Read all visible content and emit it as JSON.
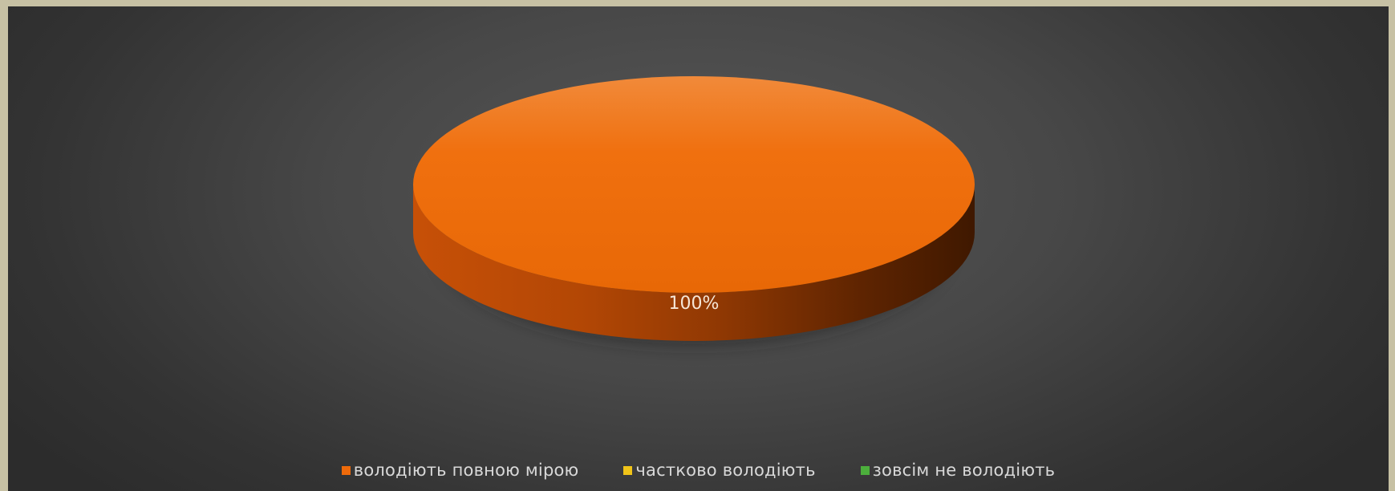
{
  "chart_data": {
    "type": "pie",
    "style": "3d",
    "title": "",
    "series": [
      {
        "slices": [
          {
            "label": "володіють повною мірою",
            "value": 100,
            "color": "#ee6a0a",
            "data_label": "100%"
          },
          {
            "label": "частково володіють",
            "value": 0,
            "color": "#f0c419",
            "data_label": ""
          },
          {
            "label": "зовсім не володіють",
            "value": 0,
            "color": "#4caf3c",
            "data_label": ""
          }
        ]
      }
    ],
    "legend": {
      "placement": "bottom",
      "entries": [
        "володіють повною мірою",
        "частково володіють",
        "зовсім не володіють"
      ]
    },
    "colors": {
      "background_border": "#c7c1a4",
      "plot_background": "#474747",
      "legend_text": "#d9d9d9"
    }
  }
}
